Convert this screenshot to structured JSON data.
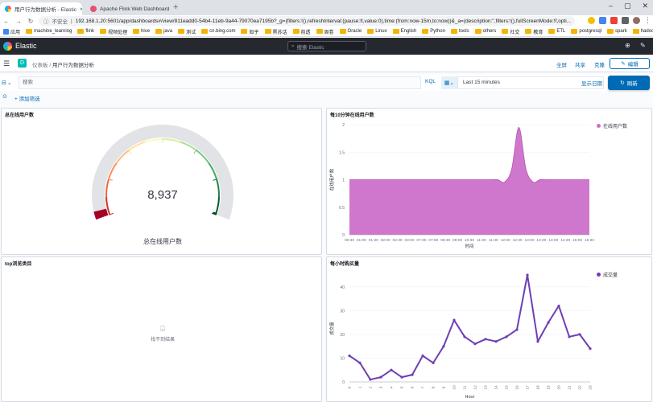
{
  "browser": {
    "tabs": [
      {
        "title": "用户行为数据分析 - Elastic",
        "active": true
      },
      {
        "title": "Apache Flink Web Dashboard",
        "active": false
      }
    ],
    "address": {
      "warning": "不安全",
      "url": "192.168.1.20:5601/app/dashboards#/view/811eadd0-54b4-11eb-9a44-79070ea7195b?_g=(filters:!(),refreshInterval:(pause:!t,value:0),time:(from:now-15m,to:now))&_a=(description:'',filters:!(),fullScreenMode:!f,opti..."
    },
    "bookmarks": [
      "应用",
      "machine_learning",
      "flink",
      "视频处理",
      "hive",
      "java",
      "测试",
      "cn.bing.com",
      "知乎",
      "黑苏话",
      "前透",
      "周卷",
      "Oracle",
      "Linux",
      "English",
      "Python",
      "tools",
      "others",
      "社交",
      "教育",
      "ETL",
      "postgresql",
      "spark",
      "hadoop"
    ]
  },
  "header": {
    "brand": "Elastic",
    "search_placeholder": "搜索 Elastic"
  },
  "breadcrumbs": {
    "parent": "仪表板",
    "separator": "/",
    "current": "用户行为数据分析",
    "links": {
      "fullscreen": "全屏",
      "share": "共享",
      "clone": "克隆"
    },
    "edit": "编辑"
  },
  "query": {
    "placeholder": "搜索",
    "language": "KQL",
    "time_range": "Last 15 minutes",
    "show_dates": "显示日期",
    "refresh": "刷新",
    "add_filter": "+ 添加筛选"
  },
  "panels": {
    "gauge": {
      "title": "总在线用户数",
      "label": "总在线用户数"
    },
    "area": {
      "title": "每10分钟在线用户数"
    },
    "topcat": {
      "title": "top浏览类目",
      "no_results": "找不到结果"
    },
    "line": {
      "title": "每小时购买量"
    }
  },
  "colors": {
    "area": "#cc70c9",
    "line": "#6e3fb5",
    "primary": "#006bb4"
  },
  "chart_data": [
    {
      "type": "gauge",
      "title": "总在线用户数",
      "value": 8937,
      "display_value": "8,937",
      "label": "总在线用户数",
      "fill_fraction": 0.03
    },
    {
      "type": "area",
      "title": "每10分钟在线用户数",
      "xlabel": "时间",
      "ylabel": "在线用户数",
      "x": [
        "00:30",
        "01:00",
        "01:30",
        "02:00",
        "02:30",
        "03:00",
        "03:30",
        "04:00",
        "04:30",
        "05:00",
        "05:30",
        "06:00",
        "06:30",
        "07:00",
        "07:30",
        "08:00",
        "08:30",
        "09:00",
        "09:30",
        "10:00",
        "10:30",
        "11:00",
        "11:10",
        "11:20",
        "11:30",
        "11:40",
        "11:50",
        "12:00",
        "12:30",
        "13:00",
        "13:30",
        "14:00",
        "14:30",
        "15:00",
        "15:30"
      ],
      "x_tick_labels": [
        "00:30",
        "01:00",
        "01:30",
        "02:00",
        "02:30",
        "03:00",
        "07:30",
        "07:50",
        "08:30",
        "09:00",
        "10:30",
        "11:00",
        "11:30",
        "12:00",
        "12:30",
        "13:00",
        "13:30",
        "14:00",
        "14:30",
        "15:00",
        "15:30"
      ],
      "ylim": [
        0,
        2
      ],
      "y_ticks": [
        0,
        0.5,
        1,
        1.5,
        2
      ],
      "series": [
        {
          "name": "在线用户数",
          "values": [
            1,
            1,
            1,
            1,
            1,
            1,
            1,
            1,
            1,
            1,
            1,
            1,
            1,
            1,
            1,
            1,
            1,
            1,
            1,
            1,
            1,
            1,
            0.96,
            1.2,
            1.95,
            1.2,
            0.96,
            1,
            1,
            1,
            1,
            1,
            1,
            1,
            1
          ]
        }
      ]
    },
    {
      "type": "line",
      "title": "每小时购买量",
      "xlabel": "Hour",
      "ylabel": "成交量",
      "x": [
        "0",
        "1",
        "2",
        "3",
        "4",
        "5",
        "6",
        "7",
        "8",
        "9",
        "10",
        "11",
        "12",
        "13",
        "14",
        "15",
        "16",
        "17",
        "18",
        "19",
        "20",
        "21",
        "22",
        "23"
      ],
      "ylim": [
        0,
        45
      ],
      "y_ticks": [
        0,
        10,
        20,
        30,
        40
      ],
      "series": [
        {
          "name": "成交量",
          "values": [
            11,
            8,
            1,
            2,
            5,
            2,
            3,
            11,
            8,
            15,
            26,
            19,
            16,
            18,
            17,
            19,
            22,
            45,
            17,
            25,
            32,
            19,
            20,
            14
          ]
        }
      ]
    }
  ]
}
